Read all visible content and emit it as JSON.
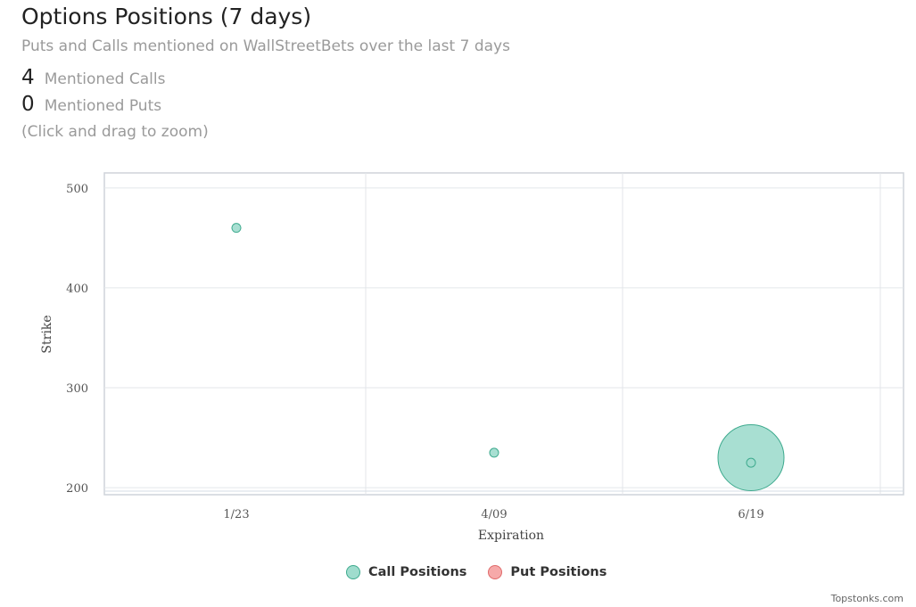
{
  "header": {
    "title": "Options Positions (7 days)",
    "subtitle": "Puts and Calls mentioned on WallStreetBets over the last 7 days",
    "calls_count": "4",
    "calls_label": "Mentioned Calls",
    "puts_count": "0",
    "puts_label": "Mentioned Puts",
    "hint": "(Click and drag to zoom)"
  },
  "chart_data": {
    "type": "scatter",
    "xlabel": "Expiration",
    "ylabel": "Strike",
    "x_ticks": [
      "1/23",
      "4/09",
      "6/19"
    ],
    "y_ticks": [
      200,
      300,
      400,
      500
    ],
    "ylim": [
      193,
      515
    ],
    "grid": true,
    "legend_position": "bottom-center",
    "series": [
      {
        "name": "Call Positions",
        "fill": "#9fdccd",
        "stroke": "#3eaa8e",
        "points": [
          {
            "x": "1/23",
            "y": 460,
            "size": 1
          },
          {
            "x": "4/09",
            "y": 235,
            "size": 1
          },
          {
            "x": "6/19",
            "y": 230,
            "size": 2
          },
          {
            "x": "6/19",
            "y": 225,
            "size": 1
          }
        ]
      },
      {
        "name": "Put Positions",
        "fill": "#f6a9a9",
        "stroke": "#e06a6a",
        "points": []
      }
    ]
  },
  "credit": "Topstonks.com"
}
